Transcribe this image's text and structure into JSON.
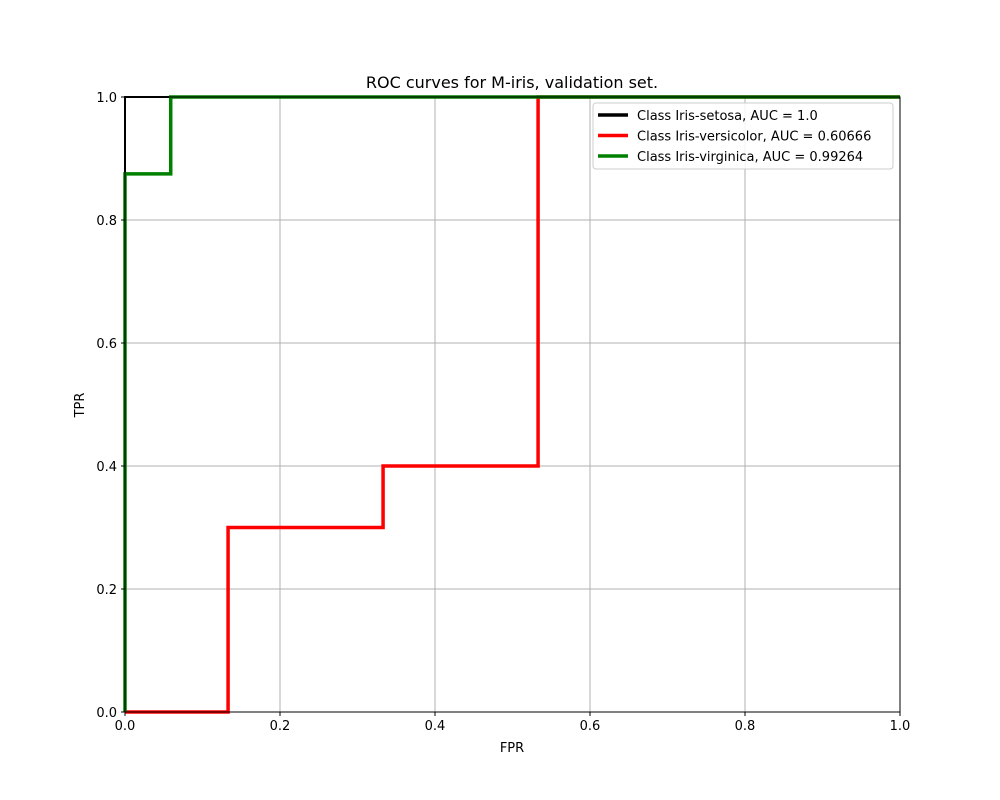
{
  "chart_data": {
    "type": "line",
    "title": "ROC curves for M-iris, validation set.",
    "xlabel": "FPR",
    "ylabel": "TPR",
    "xlim": [
      0.0,
      1.0
    ],
    "ylim": [
      0.0,
      1.0
    ],
    "xticks": [
      0.0,
      0.2,
      0.4,
      0.6,
      0.8,
      1.0
    ],
    "yticks": [
      0.0,
      0.2,
      0.4,
      0.6,
      0.8,
      1.0
    ],
    "xtick_labels": [
      "0.0",
      "0.2",
      "0.4",
      "0.6",
      "0.8",
      "1.0"
    ],
    "ytick_labels": [
      "0.0",
      "0.2",
      "0.4",
      "0.6",
      "0.8",
      "1.0"
    ],
    "grid": true,
    "legend_position": "top-right",
    "series": [
      {
        "name": "Class Iris-setosa, AUC = 1.0",
        "color": "#000000",
        "points": [
          [
            0.0,
            0.0
          ],
          [
            0.0,
            1.0
          ],
          [
            1.0,
            1.0
          ]
        ]
      },
      {
        "name": "Class Iris-versicolor, AUC = 0.60666",
        "color": "#ff0000",
        "points": [
          [
            0.0,
            0.0
          ],
          [
            0.133,
            0.0
          ],
          [
            0.133,
            0.3
          ],
          [
            0.333,
            0.3
          ],
          [
            0.333,
            0.4
          ],
          [
            0.533,
            0.4
          ],
          [
            0.533,
            1.0
          ],
          [
            1.0,
            1.0
          ]
        ]
      },
      {
        "name": "Class Iris-virginica, AUC = 0.99264",
        "color": "#008000",
        "points": [
          [
            0.0,
            0.0
          ],
          [
            0.0,
            0.875
          ],
          [
            0.059,
            0.875
          ],
          [
            0.059,
            1.0
          ],
          [
            1.0,
            1.0
          ]
        ]
      }
    ]
  }
}
